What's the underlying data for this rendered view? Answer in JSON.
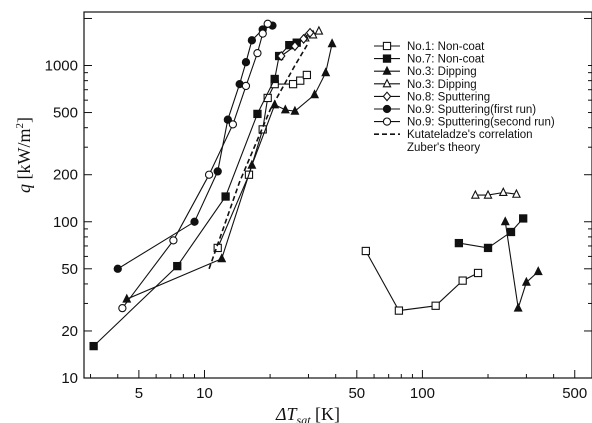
{
  "chart_data": {
    "type": "scatter",
    "scale": {
      "x": "log",
      "y": "log"
    },
    "xlim": [
      2.8,
      600
    ],
    "ylim": [
      10,
      2200
    ],
    "x_ticks": [
      {
        "value": 5,
        "label": "5"
      },
      {
        "value": 10,
        "label": "10"
      },
      {
        "value": 50,
        "label": "50"
      },
      {
        "value": 100,
        "label": "100"
      },
      {
        "value": 500,
        "label": "500"
      }
    ],
    "y_ticks": [
      {
        "value": 10,
        "label": "10"
      },
      {
        "value": 20,
        "label": "20"
      },
      {
        "value": 50,
        "label": "50"
      },
      {
        "value": 100,
        "label": "100"
      },
      {
        "value": 200,
        "label": "200"
      },
      {
        "value": 500,
        "label": "500"
      },
      {
        "value": 1000,
        "label": "1000"
      }
    ],
    "xlabel": {
      "main": "ΔT",
      "sub": "sat",
      "unit": " [K]"
    },
    "ylabel": {
      "main": "q",
      "unit": " [kW/m",
      "sup": "2",
      "close": "]"
    },
    "series": [
      {
        "name": "No.1: Non-coat",
        "marker": "square-open",
        "line": "solid",
        "segments": [
          {
            "x": [
              11.5,
              16,
              18.5,
              19.5,
              21,
              25.5,
              27.5,
              29.5
            ],
            "y": [
              68,
              200,
              390,
              620,
              760,
              760,
              800,
              870
            ]
          },
          {
            "x": [
              55,
              78,
              115,
              153,
              180
            ],
            "y": [
              65,
              27,
              29,
              42,
              47
            ]
          }
        ]
      },
      {
        "name": "No.7: Non-coat",
        "marker": "square-filled",
        "line": "solid",
        "segments": [
          {
            "x": [
              3.1,
              7.5,
              12.5,
              17.5,
              21,
              22,
              24.5,
              26.5
            ],
            "y": [
              16,
              52,
              145,
              490,
              820,
              1150,
              1350,
              1400
            ]
          },
          {
            "x": [
              147,
              200,
              255,
              290
            ],
            "y": [
              73,
              68,
              86,
              105
            ]
          }
        ]
      },
      {
        "name": "No.3: Dipping",
        "marker": "triangle-filled",
        "line": "solid",
        "segments": [
          {
            "x": [
              4.4,
              12,
              16.5,
              21,
              23.5,
              26,
              32,
              36,
              38.5
            ],
            "y": [
              32,
              58,
              230,
              560,
              520,
              510,
              650,
              900,
              1380
            ]
          },
          {
            "x": [
              240,
              275,
              300,
              340
            ],
            "y": [
              100,
              28,
              41,
              48
            ]
          }
        ]
      },
      {
        "name": "No.3: Dipping",
        "marker": "triangle-open",
        "line": "solid",
        "segments": [
          {
            "x": [
              175,
              200,
              235,
              270
            ],
            "y": [
              148,
              148,
              154,
              150
            ]
          },
          {
            "x": [
              29,
              31.5,
              33.5
            ],
            "y": [
              1500,
              1570,
              1660
            ]
          }
        ]
      },
      {
        "name": "No.8: Sputtering",
        "marker": "diamond-open",
        "line": "solid",
        "segments": [
          {
            "x": [
              22.5,
              26,
              28.5,
              30.5
            ],
            "y": [
              1150,
              1330,
              1480,
              1620
            ]
          }
        ]
      },
      {
        "name": "No.9: Sputtering(first run)",
        "marker": "circle-filled",
        "line": "solid",
        "segments": [
          {
            "x": [
              4.0,
              9.0,
              11.5,
              12.8,
              14.5,
              15.5,
              16.5,
              18.5,
              20.5
            ],
            "y": [
              50,
              100,
              210,
              450,
              760,
              1050,
              1450,
              1700,
              1800
            ]
          }
        ]
      },
      {
        "name": "No.9: Sputtering(second run)",
        "marker": "circle-open",
        "line": "solid",
        "segments": [
          {
            "x": [
              4.2,
              7.2,
              10.5,
              13.5,
              15.5,
              17.5,
              18.5,
              19.5
            ],
            "y": [
              28,
              76,
              200,
              420,
              740,
              1200,
              1600,
              1850
            ]
          }
        ]
      },
      {
        "name": "Kutateladze's correlation\nZuber's theory",
        "marker": "none",
        "line": "dashed",
        "segments": [
          {
            "x": [
              10.5,
              14.5,
              20,
              26,
              30
            ],
            "y": [
              50,
              180,
              520,
              1000,
              1400
            ]
          }
        ]
      }
    ],
    "colors": {
      "ink": "#111111",
      "background": "#ffffff"
    }
  }
}
